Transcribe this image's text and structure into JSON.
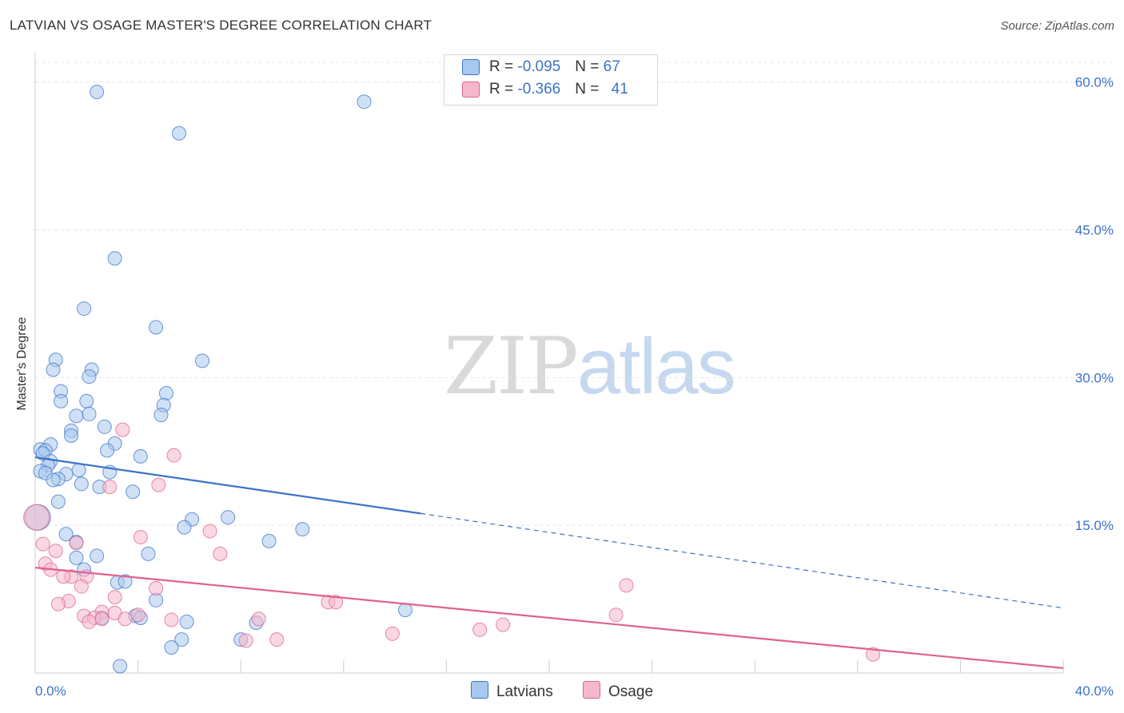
{
  "header": {
    "title": "LATVIAN VS OSAGE MASTER'S DEGREE CORRELATION CHART",
    "source": "Source: ZipAtlas.com"
  },
  "watermark": {
    "zip": "ZIP",
    "atlas": "atlas"
  },
  "legend": {
    "rows": [
      {
        "r_label": "R = ",
        "r_value": "-0.095",
        "n_label": "N = ",
        "n_value": "67",
        "color": "#a9c8ef"
      },
      {
        "r_label": "R = ",
        "r_value": "-0.366",
        "n_label": "N = ",
        "n_value": "41",
        "color": "#f5b8cb"
      }
    ],
    "series": [
      "Latvians",
      "Osage"
    ]
  },
  "chart_data": {
    "type": "scatter",
    "title": "LATVIAN VS OSAGE MASTER'S DEGREE CORRELATION CHART",
    "xlabel": "",
    "ylabel": "Master's Degree",
    "xlim": [
      0,
      40
    ],
    "ylim": [
      0,
      62
    ],
    "x_tick_labels": [
      "0.0%",
      "40.0%"
    ],
    "y_ticks": [
      {
        "value": 15,
        "label": "15.0%"
      },
      {
        "value": 30,
        "label": "30.0%"
      },
      {
        "value": 45,
        "label": "45.0%"
      },
      {
        "value": 60,
        "label": "60.0%"
      }
    ],
    "grid": true,
    "series": [
      {
        "name": "Latvians",
        "color": "#3b73c8",
        "fill": "#a9c8ef",
        "trend": {
          "x0": 0,
          "y0": 21.9,
          "x1": 15,
          "y1": 16.2,
          "dash_x1": 40,
          "dash_y1": 6.6
        },
        "points": [
          [
            2.4,
            59.0
          ],
          [
            12.8,
            58.0
          ],
          [
            5.6,
            54.8
          ],
          [
            3.1,
            42.1
          ],
          [
            1.9,
            37.0
          ],
          [
            4.7,
            35.1
          ],
          [
            0.8,
            31.8
          ],
          [
            6.5,
            31.7
          ],
          [
            0.7,
            30.8
          ],
          [
            2.2,
            30.8
          ],
          [
            2.1,
            30.1
          ],
          [
            1.0,
            28.6
          ],
          [
            5.1,
            28.4
          ],
          [
            1.0,
            27.6
          ],
          [
            2.0,
            27.6
          ],
          [
            5.0,
            27.2
          ],
          [
            2.1,
            26.3
          ],
          [
            1.6,
            26.1
          ],
          [
            4.9,
            26.2
          ],
          [
            2.7,
            25.0
          ],
          [
            1.4,
            24.6
          ],
          [
            1.4,
            24.1
          ],
          [
            0.6,
            23.2
          ],
          [
            3.1,
            23.3
          ],
          [
            0.2,
            22.7
          ],
          [
            0.4,
            22.6
          ],
          [
            2.8,
            22.6
          ],
          [
            0.3,
            22.3
          ],
          [
            4.1,
            22.0
          ],
          [
            0.6,
            21.5
          ],
          [
            0.5,
            21.1
          ],
          [
            1.7,
            20.6
          ],
          [
            0.2,
            20.5
          ],
          [
            2.9,
            20.4
          ],
          [
            0.4,
            20.3
          ],
          [
            1.2,
            20.2
          ],
          [
            0.9,
            19.7
          ],
          [
            0.7,
            19.6
          ],
          [
            1.8,
            19.2
          ],
          [
            2.5,
            18.9
          ],
          [
            3.8,
            18.4
          ],
          [
            0.9,
            17.4
          ],
          [
            6.1,
            15.6
          ],
          [
            7.5,
            15.8
          ],
          [
            5.8,
            14.8
          ],
          [
            10.4,
            14.6
          ],
          [
            1.2,
            14.1
          ],
          [
            9.1,
            13.4
          ],
          [
            1.6,
            13.3
          ],
          [
            4.4,
            12.1
          ],
          [
            2.4,
            11.9
          ],
          [
            1.6,
            11.7
          ],
          [
            1.9,
            10.5
          ],
          [
            3.2,
            9.2
          ],
          [
            3.5,
            9.3
          ],
          [
            4.7,
            7.4
          ],
          [
            14.4,
            6.4
          ],
          [
            3.9,
            5.8
          ],
          [
            4.1,
            5.6
          ],
          [
            2.6,
            5.6
          ],
          [
            5.9,
            5.2
          ],
          [
            8.6,
            5.1
          ],
          [
            5.7,
            3.4
          ],
          [
            8.0,
            3.4
          ],
          [
            5.3,
            2.6
          ],
          [
            3.3,
            0.7
          ],
          [
            0.1,
            15.8
          ]
        ]
      },
      {
        "name": "Osage",
        "color": "#e06090",
        "fill": "#f5b8cb",
        "trend": {
          "x0": 0,
          "y0": 10.7,
          "x1": 40,
          "y1": 0.5
        },
        "points": [
          [
            3.4,
            24.7
          ],
          [
            5.4,
            22.1
          ],
          [
            4.8,
            19.1
          ],
          [
            2.9,
            18.9
          ],
          [
            4.1,
            13.8
          ],
          [
            6.8,
            14.4
          ],
          [
            0.3,
            13.1
          ],
          [
            1.6,
            13.2
          ],
          [
            0.8,
            12.4
          ],
          [
            7.2,
            12.1
          ],
          [
            0.4,
            11.1
          ],
          [
            0.6,
            10.5
          ],
          [
            2.0,
            9.8
          ],
          [
            1.4,
            9.8
          ],
          [
            1.1,
            9.8
          ],
          [
            1.8,
            8.8
          ],
          [
            4.7,
            8.6
          ],
          [
            23.0,
            8.9
          ],
          [
            3.1,
            7.7
          ],
          [
            1.3,
            7.3
          ],
          [
            0.9,
            7.0
          ],
          [
            11.4,
            7.2
          ],
          [
            11.7,
            7.2
          ],
          [
            2.6,
            6.2
          ],
          [
            3.1,
            6.1
          ],
          [
            1.9,
            5.8
          ],
          [
            4.0,
            5.9
          ],
          [
            22.6,
            5.9
          ],
          [
            2.3,
            5.6
          ],
          [
            3.5,
            5.5
          ],
          [
            2.6,
            5.5
          ],
          [
            5.3,
            5.4
          ],
          [
            8.7,
            5.5
          ],
          [
            2.1,
            5.2
          ],
          [
            18.2,
            4.9
          ],
          [
            17.3,
            4.4
          ],
          [
            13.9,
            4.0
          ],
          [
            8.2,
            3.3
          ],
          [
            9.4,
            3.4
          ],
          [
            32.6,
            1.9
          ],
          [
            0.05,
            15.8
          ]
        ]
      }
    ]
  }
}
